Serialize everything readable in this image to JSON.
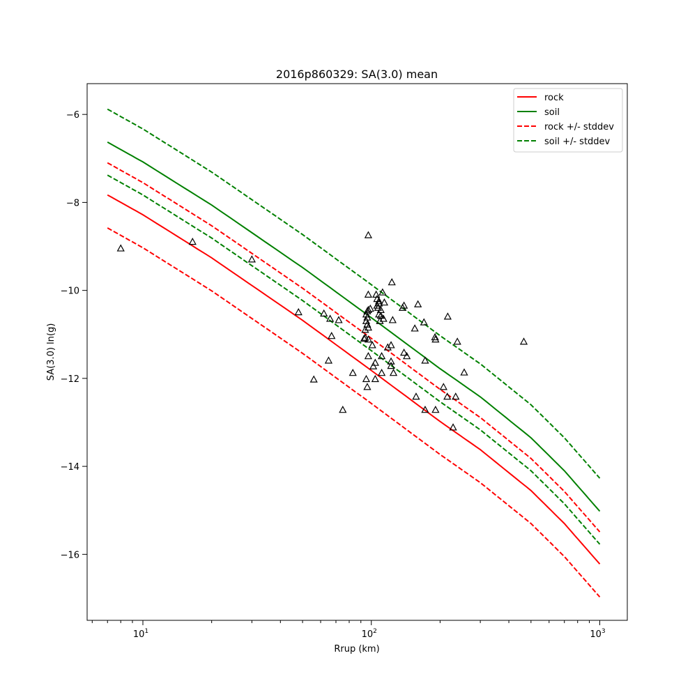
{
  "chart_data": {
    "type": "line",
    "title": "2016p860329: SA(3.0) mean",
    "xlabel": "Rrup (km)",
    "ylabel": "SA(3.0) ln(g)",
    "xscale": "log",
    "xlim": [
      5.7,
      1320
    ],
    "ylim": [
      -17.5,
      -5.3
    ],
    "x_ticks": [
      {
        "value": 10,
        "base": "10",
        "exp": "1"
      },
      {
        "value": 100,
        "base": "10",
        "exp": "2"
      },
      {
        "value": 1000,
        "base": "10",
        "exp": "3"
      }
    ],
    "y_ticks": [
      -6,
      -8,
      -10,
      -12,
      -14,
      -16
    ],
    "grid": false,
    "legend_position": "top-right",
    "series": [
      {
        "name": "rock",
        "color": "#ff0000",
        "style": "solid",
        "x": [
          7,
          10,
          20,
          50,
          100,
          200,
          300,
          500,
          700,
          1000
        ],
        "y": [
          -7.83,
          -8.28,
          -9.26,
          -10.68,
          -11.82,
          -12.98,
          -13.62,
          -14.55,
          -15.3,
          -16.22
        ]
      },
      {
        "name": "soil",
        "color": "#008000",
        "style": "solid",
        "x": [
          7,
          10,
          20,
          50,
          100,
          200,
          300,
          500,
          700,
          1000
        ],
        "y": [
          -6.63,
          -7.08,
          -8.06,
          -9.48,
          -10.62,
          -11.78,
          -12.42,
          -13.35,
          -14.1,
          -15.02
        ]
      },
      {
        "name": "rock +/- stddev",
        "color": "#ff0000",
        "style": "dashed",
        "x": [
          7,
          10,
          20,
          50,
          100,
          200,
          300,
          500,
          700,
          1000
        ],
        "y": [
          -7.1,
          -7.55,
          -8.53,
          -9.95,
          -11.09,
          -12.25,
          -12.89,
          -13.82,
          -14.57,
          -15.49
        ]
      },
      {
        "name": "",
        "color": "#ff0000",
        "style": "dashed",
        "x": [
          7,
          10,
          20,
          50,
          100,
          200,
          300,
          500,
          700,
          1000
        ],
        "y": [
          -8.58,
          -9.03,
          -10.01,
          -11.43,
          -12.57,
          -13.73,
          -14.37,
          -15.3,
          -16.05,
          -16.97
        ]
      },
      {
        "name": "soil +/- stddev",
        "color": "#008000",
        "style": "dashed",
        "x": [
          7,
          10,
          20,
          50,
          100,
          200,
          300,
          500,
          700,
          1000
        ],
        "y": [
          -5.88,
          -6.33,
          -7.31,
          -8.73,
          -9.87,
          -11.03,
          -11.67,
          -12.6,
          -13.35,
          -14.27
        ]
      },
      {
        "name": "",
        "color": "#008000",
        "style": "dashed",
        "x": [
          7,
          10,
          20,
          50,
          100,
          200,
          300,
          500,
          700,
          1000
        ],
        "y": [
          -7.38,
          -7.83,
          -8.81,
          -10.23,
          -11.37,
          -12.53,
          -13.17,
          -14.1,
          -14.85,
          -15.77
        ]
      }
    ],
    "observations": {
      "marker": "triangle",
      "color": "#000000",
      "points": [
        [
          8,
          -9.05
        ],
        [
          16.5,
          -8.9
        ],
        [
          30,
          -9.3
        ],
        [
          48,
          -10.5
        ],
        [
          56,
          -12.03
        ],
        [
          62,
          -10.53
        ],
        [
          65,
          -11.6
        ],
        [
          66,
          -10.65
        ],
        [
          67,
          -11.04
        ],
        [
          72,
          -10.68
        ],
        [
          75,
          -12.72
        ],
        [
          83,
          -11.88
        ],
        [
          93,
          -11.1
        ],
        [
          94,
          -10.9
        ],
        [
          94,
          -11.08
        ],
        [
          95,
          -10.55
        ],
        [
          95,
          -10.7
        ],
        [
          95,
          -12.02
        ],
        [
          96,
          -10.48
        ],
        [
          96,
          -10.62
        ],
        [
          96,
          -10.78
        ],
        [
          96,
          -12.2
        ],
        [
          97,
          -10.45
        ],
        [
          97,
          -10.85
        ],
        [
          97,
          -11.5
        ],
        [
          97,
          -11.12
        ],
        [
          97,
          -10.1
        ],
        [
          97,
          -8.75
        ],
        [
          99,
          -10.42
        ],
        [
          101,
          -11.25
        ],
        [
          102,
          -11.73
        ],
        [
          104,
          -11.65
        ],
        [
          104,
          -12.02
        ],
        [
          105,
          -10.1
        ],
        [
          106,
          -10.2
        ],
        [
          106,
          -10.35
        ],
        [
          107,
          -10.4
        ],
        [
          108,
          -10.25
        ],
        [
          108,
          -10.3
        ],
        [
          108,
          -10.55
        ],
        [
          109,
          -10.7
        ],
        [
          110,
          -10.45
        ],
        [
          110,
          -10.58
        ],
        [
          111,
          -11.88
        ],
        [
          111,
          -11.5
        ],
        [
          112,
          -10.05
        ],
        [
          113,
          -10.65
        ],
        [
          114,
          -10.28
        ],
        [
          118,
          -11.3
        ],
        [
          122,
          -11.25
        ],
        [
          122,
          -11.72
        ],
        [
          122,
          -11.62
        ],
        [
          123,
          -9.82
        ],
        [
          124,
          -10.68
        ],
        [
          125,
          -11.88
        ],
        [
          137,
          -10.4
        ],
        [
          139,
          -10.35
        ],
        [
          139,
          -11.42
        ],
        [
          143,
          -11.5
        ],
        [
          155,
          -10.87
        ],
        [
          157,
          -12.42
        ],
        [
          160,
          -10.32
        ],
        [
          170,
          -10.73
        ],
        [
          172,
          -11.6
        ],
        [
          172,
          -12.72
        ],
        [
          190,
          -11.07
        ],
        [
          191,
          -11.12
        ],
        [
          191,
          -12.72
        ],
        [
          207,
          -12.2
        ],
        [
          215,
          -12.42
        ],
        [
          216,
          -10.6
        ],
        [
          228,
          -13.12
        ],
        [
          234,
          -12.42
        ],
        [
          238,
          -11.17
        ],
        [
          255,
          -11.87
        ],
        [
          465,
          -11.17
        ]
      ]
    }
  }
}
